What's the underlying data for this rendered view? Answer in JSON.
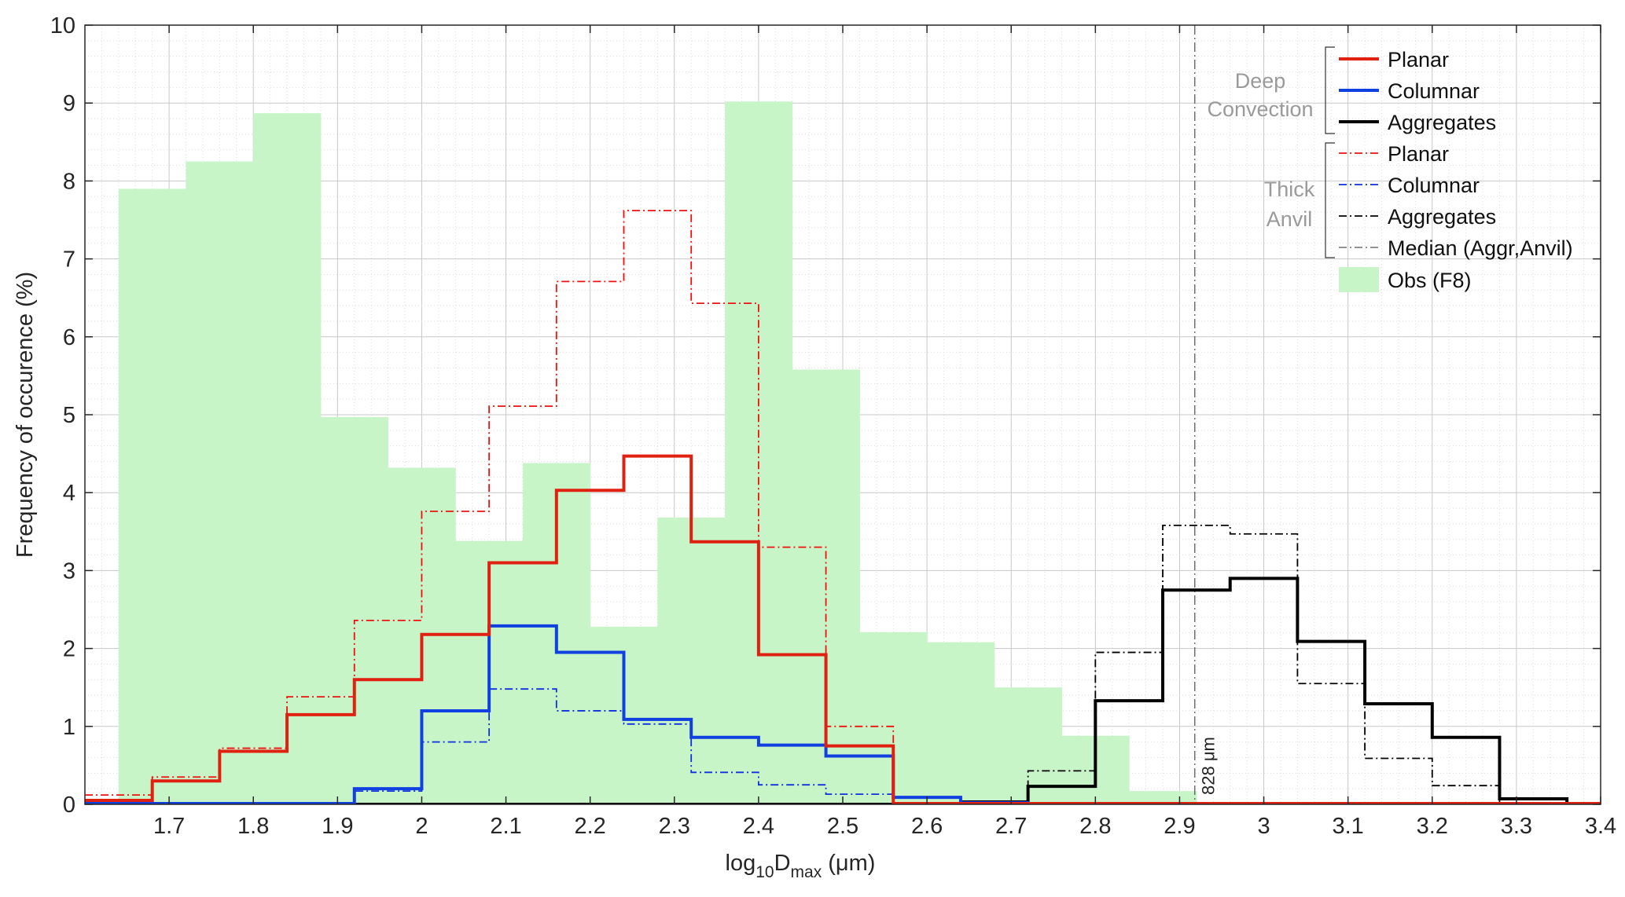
{
  "chart_data": {
    "type": "step",
    "ylabel": "Frequency of occurence (%)",
    "xlabel": {
      "prefix": "log",
      "sub1": "10",
      "mid": "D",
      "sub2": "max",
      "unit": " (μm)"
    },
    "xlim": [
      1.6,
      3.4
    ],
    "ylim": [
      0,
      10
    ],
    "x_ticks": [
      1.7,
      1.8,
      1.9,
      2,
      2.1,
      2.2,
      2.3,
      2.4,
      2.5,
      2.6,
      2.7,
      2.8,
      2.9,
      3,
      3.1,
      3.2,
      3.3,
      3.4
    ],
    "x_tick_labels": [
      "1.7",
      "1.8",
      "1.9",
      "2",
      "2.1",
      "2.2",
      "2.3",
      "2.4",
      "2.5",
      "2.6",
      "2.7",
      "2.8",
      "2.9",
      "3",
      "3.1",
      "3.2",
      "3.3",
      "3.4"
    ],
    "y_ticks": [
      0,
      1,
      2,
      3,
      4,
      5,
      6,
      7,
      8,
      9,
      10
    ],
    "y_tick_labels": [
      "0",
      "1",
      "2",
      "3",
      "4",
      "5",
      "6",
      "7",
      "8",
      "9",
      "10"
    ],
    "grid": true,
    "legend_position": "top-right",
    "obs": {
      "name": "Obs (F8)",
      "color": "#c8f5c8",
      "edges": [
        1.64,
        1.72,
        1.8,
        1.88,
        1.96,
        2.04,
        2.12,
        2.2,
        2.28,
        2.36,
        2.44,
        2.52,
        2.6,
        2.68,
        2.76,
        2.84,
        2.92
      ],
      "values": [
        7.9,
        8.25,
        8.87,
        4.97,
        4.32,
        3.38,
        4.38,
        2.28,
        3.68,
        9.02,
        5.58,
        2.21,
        2.08,
        1.5,
        0.88,
        0.17
      ]
    },
    "series": [
      {
        "name": "Planar",
        "group": "Deep Convection",
        "color": "#e02010",
        "style": "solid",
        "width": 4,
        "edges": [
          1.6,
          1.68,
          1.76,
          1.84,
          1.92,
          2.0,
          2.08,
          2.16,
          2.24,
          2.32,
          2.4,
          2.48,
          2.56,
          2.64,
          3.4
        ],
        "values": [
          0.05,
          0.3,
          0.68,
          1.15,
          1.6,
          2.18,
          3.1,
          4.03,
          4.47,
          3.37,
          1.92,
          0.75,
          0.01,
          0.01
        ]
      },
      {
        "name": "Columnar",
        "group": "Deep Convection",
        "color": "#1040e0",
        "style": "solid",
        "width": 4,
        "edges": [
          1.6,
          1.92,
          2.0,
          2.08,
          2.16,
          2.24,
          2.32,
          2.4,
          2.48,
          2.56,
          2.64,
          2.72,
          3.4
        ],
        "values": [
          0.01,
          0.2,
          1.2,
          2.29,
          1.95,
          1.09,
          0.86,
          0.76,
          0.62,
          0.09,
          0.02,
          0.01
        ]
      },
      {
        "name": "Aggregates",
        "group": "Deep Convection",
        "color": "#000000",
        "style": "solid",
        "width": 4,
        "edges": [
          1.6,
          2.64,
          2.72,
          2.8,
          2.88,
          2.96,
          3.04,
          3.12,
          3.2,
          3.28,
          3.36,
          3.4
        ],
        "values": [
          0.0,
          0.03,
          0.23,
          1.33,
          2.75,
          2.9,
          2.09,
          1.29,
          0.86,
          0.07,
          0.01
        ]
      },
      {
        "name": "Planar",
        "group": "Thick Anvil",
        "color": "#f01010",
        "style": "dashdot",
        "width": 1.8,
        "edges": [
          1.6,
          1.68,
          1.76,
          1.84,
          1.92,
          2.0,
          2.08,
          2.16,
          2.24,
          2.32,
          2.4,
          2.48,
          2.56,
          3.4
        ],
        "values": [
          0.12,
          0.35,
          0.72,
          1.38,
          2.36,
          3.76,
          5.11,
          6.71,
          7.62,
          6.43,
          3.3,
          1.0,
          0.02
        ]
      },
      {
        "name": "Columnar",
        "group": "Thick Anvil",
        "color": "#1030e0",
        "style": "dashdot",
        "width": 1.8,
        "edges": [
          1.6,
          1.92,
          2.0,
          2.08,
          2.16,
          2.24,
          2.32,
          2.4,
          2.48,
          2.56,
          3.4
        ],
        "values": [
          0.01,
          0.17,
          0.8,
          1.48,
          1.2,
          1.03,
          0.41,
          0.25,
          0.13,
          0.02
        ]
      },
      {
        "name": "Aggregates",
        "group": "Thick Anvil",
        "color": "#000000",
        "style": "dashdot",
        "width": 1.8,
        "edges": [
          1.6,
          2.72,
          2.8,
          2.88,
          2.96,
          3.04,
          3.12,
          3.2,
          3.28,
          3.4
        ],
        "values": [
          0.0,
          0.43,
          1.95,
          3.58,
          3.47,
          1.55,
          0.59,
          0.24,
          0.02
        ]
      }
    ],
    "median": {
      "name": "Median (Aggr,Anvil)",
      "x": 2.918,
      "label": "828 μm",
      "color": "#6e6e6e"
    },
    "legend": {
      "group1_label": [
        "Deep",
        "Convection"
      ],
      "group2_label": [
        "Thick",
        "Anvil"
      ],
      "items": [
        "Planar",
        "Columnar",
        "Aggregates",
        "Planar",
        "Columnar",
        "Aggregates",
        "Median (Aggr,Anvil)",
        "Obs (F8)"
      ]
    }
  }
}
